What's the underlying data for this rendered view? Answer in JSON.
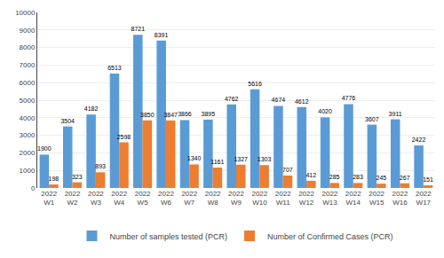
{
  "chart_data": {
    "type": "bar",
    "categories": [
      "2022\nW1",
      "2022\nW2",
      "2022\nW3",
      "2022\nW4",
      "2022\nW5",
      "2022\nW6",
      "2022\nW7",
      "2022\nW8",
      "2022\nW9",
      "2022\nW10",
      "2022\nW11",
      "2022\nW12",
      "2022\nW13",
      "2022\nW14",
      "2022\nW15",
      "2022\nW16",
      "2022\nW17"
    ],
    "series": [
      {
        "name": "Number of samples tested (PCR)",
        "color": "#5B9BD5",
        "values": [
          1900,
          3504,
          4182,
          6513,
          8721,
          8391,
          3866,
          3895,
          4762,
          5616,
          4674,
          4612,
          4020,
          4776,
          3607,
          3911,
          2422
        ]
      },
      {
        "name": "Number of Confirmed Cases (PCR)",
        "color": "#ED7D31",
        "values": [
          198,
          323,
          893,
          2598,
          3850,
          3847,
          1340,
          1161,
          1327,
          1303,
          707,
          412,
          285,
          283,
          245,
          267,
          151
        ]
      }
    ],
    "ylim": [
      0,
      10000
    ],
    "yticks": [
      0,
      1000,
      2000,
      3000,
      4000,
      5000,
      6000,
      7000,
      8000,
      9000,
      10000
    ],
    "grid": true,
    "legend": "bottom",
    "data_labels": true
  }
}
